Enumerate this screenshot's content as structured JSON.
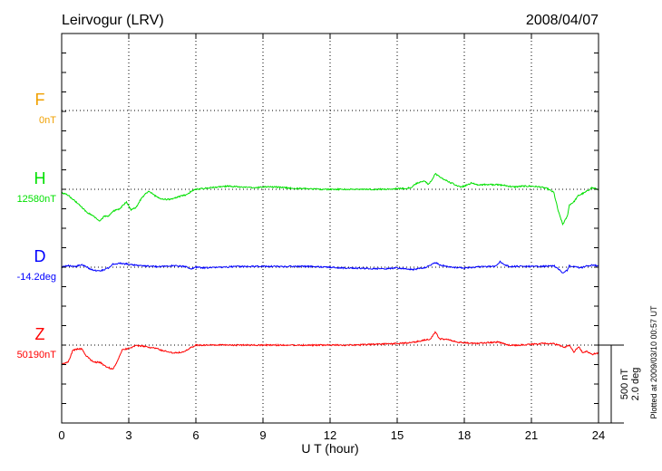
{
  "chart_data": {
    "type": "line",
    "title": "Leirvogur (LRV)",
    "date": "2008/04/07",
    "xlabel": "U T (hour)",
    "xlim": [
      0,
      24
    ],
    "xticks": [
      0,
      3,
      6,
      9,
      12,
      15,
      18,
      21,
      24
    ],
    "grid": true,
    "scale_label": "500 nT",
    "scale_label_2": "2.0 deg",
    "footnote": "Plotted at 2009/03/10 00:57 UT",
    "series": [
      {
        "name": "F",
        "baseline_label": "0nT",
        "color": "#f0a000",
        "x": [],
        "y": []
      },
      {
        "name": "H",
        "baseline_label": "12580nT",
        "color": "#00e000",
        "x": [
          0,
          0.3,
          0.6,
          0.9,
          1.1,
          1.4,
          1.7,
          1.9,
          2.1,
          2.3,
          2.6,
          2.9,
          3.1,
          3.3,
          3.6,
          3.9,
          4.1,
          4.4,
          4.7,
          5.0,
          5.3,
          5.6,
          5.8,
          6.0,
          6.3,
          6.6,
          7.0,
          7.5,
          8.0,
          8.5,
          9.0,
          9.5,
          10.0,
          10.5,
          11.0,
          11.5,
          12.0,
          12.5,
          13.0,
          13.5,
          14.0,
          14.5,
          15.0,
          15.3,
          15.6,
          15.9,
          16.2,
          16.4,
          16.6,
          16.7,
          16.9,
          17.2,
          17.5,
          17.8,
          18.0,
          18.3,
          18.6,
          19.0,
          19.4,
          19.8,
          20.2,
          20.6,
          21.0,
          21.4,
          21.7,
          22.0,
          22.2,
          22.4,
          22.6,
          22.7,
          22.9,
          23.1,
          23.4,
          23.7,
          24.0
        ],
        "y": [
          -20,
          -40,
          -75,
          -115,
          -145,
          -170,
          -205,
          -175,
          -170,
          -140,
          -125,
          -80,
          -130,
          -120,
          -50,
          -10,
          -35,
          -60,
          -65,
          -60,
          -45,
          -35,
          -10,
          0,
          5,
          10,
          15,
          20,
          15,
          10,
          15,
          15,
          10,
          5,
          5,
          0,
          0,
          0,
          0,
          0,
          0,
          0,
          5,
          5,
          10,
          40,
          55,
          30,
          70,
          100,
          80,
          55,
          35,
          15,
          20,
          40,
          30,
          30,
          30,
          25,
          15,
          20,
          20,
          15,
          5,
          -20,
          -140,
          -225,
          -175,
          -100,
          -80,
          -40,
          -20,
          10,
          0
        ]
      },
      {
        "name": "D",
        "baseline_label": "-14.2deg",
        "color": "#0000ff",
        "x": [
          0,
          0.3,
          0.6,
          0.9,
          1.1,
          1.3,
          1.5,
          1.7,
          1.9,
          2.1,
          2.3,
          2.6,
          3.0,
          3.5,
          4.0,
          4.5,
          5.0,
          5.5,
          5.8,
          6.0,
          6.5,
          7.0,
          8.0,
          9.0,
          10.0,
          11.0,
          12.0,
          12.5,
          13.0,
          14.0,
          14.5,
          15.0,
          15.3,
          15.7,
          16.2,
          16.5,
          16.7,
          16.9,
          17.2,
          17.5,
          18.0,
          18.5,
          19.0,
          19.4,
          19.6,
          19.8,
          20.0,
          20.5,
          21.0,
          21.5,
          22.0,
          22.2,
          22.4,
          22.6,
          22.7,
          22.9,
          23.2,
          23.5,
          23.8,
          24.0
        ],
        "y": [
          0,
          10,
          5,
          15,
          5,
          -15,
          -20,
          -25,
          -15,
          -5,
          20,
          25,
          20,
          10,
          5,
          5,
          10,
          5,
          -10,
          0,
          -5,
          0,
          5,
          5,
          5,
          5,
          0,
          -5,
          -5,
          -10,
          -10,
          -5,
          -10,
          -15,
          -5,
          15,
          30,
          15,
          5,
          0,
          -5,
          0,
          5,
          5,
          35,
          15,
          5,
          5,
          5,
          5,
          10,
          -10,
          -35,
          -20,
          10,
          5,
          -5,
          10,
          15,
          5
        ]
      },
      {
        "name": "Z",
        "baseline_label": "50190nT",
        "color": "#ff0000",
        "x": [
          0,
          0.3,
          0.5,
          0.7,
          0.9,
          1.1,
          1.3,
          1.5,
          1.7,
          1.9,
          2.1,
          2.3,
          2.5,
          2.7,
          3.0,
          3.3,
          3.6,
          3.9,
          4.2,
          4.5,
          5.0,
          5.4,
          5.8,
          6.0,
          6.5,
          7.0,
          8.0,
          9.0,
          10.0,
          11.0,
          12.0,
          13.0,
          14.0,
          15.0,
          15.5,
          16.0,
          16.5,
          16.7,
          16.9,
          17.3,
          17.7,
          18.0,
          18.5,
          19.0,
          19.5,
          20.0,
          20.5,
          21.0,
          21.5,
          22.0,
          22.3,
          22.5,
          22.7,
          22.9,
          23.1,
          23.3,
          23.5,
          23.7,
          24.0
        ],
        "y": [
          -125,
          -105,
          -35,
          -25,
          -25,
          -70,
          -95,
          -110,
          -110,
          -130,
          -145,
          -155,
          -100,
          -30,
          -20,
          -5,
          -5,
          -15,
          -20,
          -35,
          -50,
          -45,
          -15,
          0,
          0,
          0,
          0,
          0,
          0,
          0,
          0,
          0,
          5,
          10,
          15,
          25,
          40,
          85,
          40,
          35,
          20,
          15,
          10,
          15,
          20,
          0,
          0,
          5,
          10,
          10,
          -5,
          -15,
          0,
          -45,
          -10,
          -50,
          -40,
          -60,
          -50
        ]
      }
    ]
  }
}
